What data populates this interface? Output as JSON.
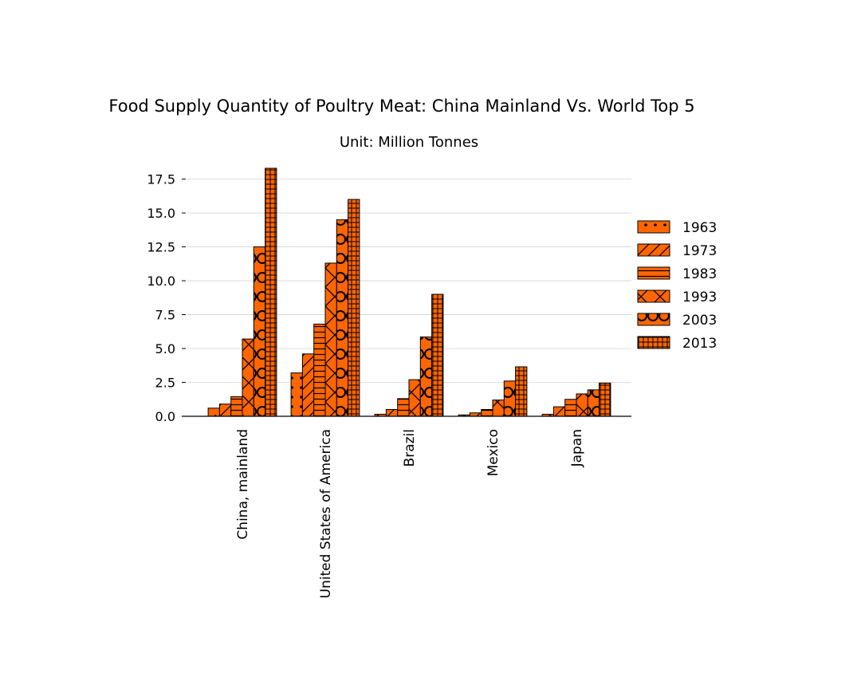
{
  "chart_data": {
    "type": "bar",
    "title": "Food Supply Quantity of Poultry Meat: China Mainland Vs. World Top 5",
    "subtitle": "Unit: Million Tonnes",
    "xlabel": "",
    "ylabel": "",
    "ylim": [
      0,
      18.3
    ],
    "yticks": [
      "0.0",
      "2.5",
      "5.0",
      "7.5",
      "10.0",
      "12.5",
      "15.0",
      "17.5"
    ],
    "ytick_values": [
      0,
      2.5,
      5,
      7.5,
      10,
      12.5,
      15,
      17.5
    ],
    "grid": true,
    "legend_position": "right",
    "bar_color": "#ff6600",
    "categories": [
      "China, mainland",
      "United States of America",
      "Brazil",
      "Mexico",
      "Japan"
    ],
    "series": [
      {
        "name": "1963",
        "pattern": "dots",
        "values": [
          0.6,
          3.2,
          0.15,
          0.1,
          0.15
        ]
      },
      {
        "name": "1973",
        "pattern": "diagonal",
        "values": [
          0.9,
          4.6,
          0.5,
          0.25,
          0.7
        ]
      },
      {
        "name": "1983",
        "pattern": "horizontal",
        "values": [
          1.45,
          6.8,
          1.3,
          0.5,
          1.25
        ]
      },
      {
        "name": "1993",
        "pattern": "cross",
        "values": [
          5.7,
          11.3,
          2.7,
          1.2,
          1.65
        ]
      },
      {
        "name": "2003",
        "pattern": "circles",
        "values": [
          12.5,
          14.5,
          5.85,
          2.6,
          1.95
        ]
      },
      {
        "name": "2013",
        "pattern": "grid",
        "values": [
          18.3,
          16.0,
          9.0,
          3.65,
          2.45
        ]
      }
    ]
  }
}
